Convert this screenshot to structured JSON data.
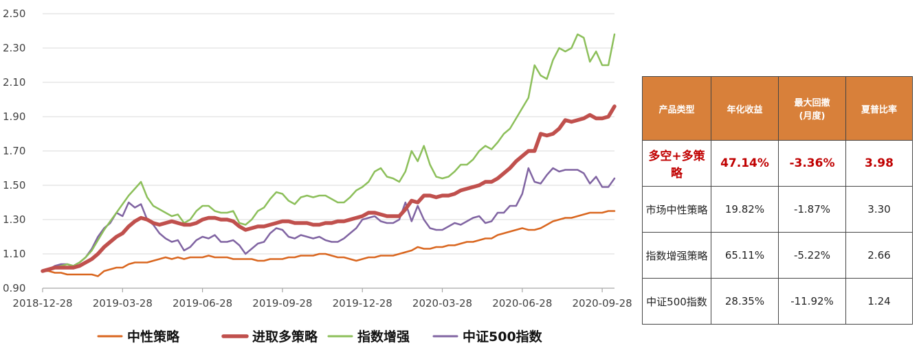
{
  "chart_data": {
    "type": "line",
    "title": "",
    "xlabel": "",
    "ylabel": "",
    "ylim": [
      0.9,
      2.5
    ],
    "yticks": [
      "0.90",
      "1.10",
      "1.30",
      "1.50",
      "1.70",
      "1.90",
      "2.10",
      "2.30",
      "2.50"
    ],
    "x_tick_labels": [
      "2018-12-28",
      "2019-03-28",
      "2019-06-28",
      "2019-09-28",
      "2019-12-28",
      "2020-03-28",
      "2020-06-28",
      "2020-09-28"
    ],
    "x": [
      "2018-12-28",
      "2019-01-04",
      "2019-01-11",
      "2019-01-18",
      "2019-01-25",
      "2019-02-01",
      "2019-02-08",
      "2019-02-15",
      "2019-02-22",
      "2019-03-01",
      "2019-03-08",
      "2019-03-15",
      "2019-03-22",
      "2019-03-29",
      "2019-04-05",
      "2019-04-12",
      "2019-04-19",
      "2019-04-26",
      "2019-05-03",
      "2019-05-10",
      "2019-05-17",
      "2019-05-24",
      "2019-05-31",
      "2019-06-07",
      "2019-06-14",
      "2019-06-21",
      "2019-06-28",
      "2019-07-05",
      "2019-07-12",
      "2019-07-19",
      "2019-07-26",
      "2019-08-02",
      "2019-08-09",
      "2019-08-16",
      "2019-08-23",
      "2019-08-30",
      "2019-09-06",
      "2019-09-13",
      "2019-09-20",
      "2019-09-27",
      "2019-10-04",
      "2019-10-11",
      "2019-10-18",
      "2019-10-25",
      "2019-11-01",
      "2019-11-08",
      "2019-11-15",
      "2019-11-22",
      "2019-11-29",
      "2019-12-06",
      "2019-12-13",
      "2019-12-20",
      "2019-12-27",
      "2020-01-03",
      "2020-01-10",
      "2020-01-17",
      "2020-01-24",
      "2020-01-31",
      "2020-02-07",
      "2020-02-14",
      "2020-02-21",
      "2020-02-28",
      "2020-03-06",
      "2020-03-13",
      "2020-03-20",
      "2020-03-27",
      "2020-04-03",
      "2020-04-10",
      "2020-04-17",
      "2020-04-24",
      "2020-05-01",
      "2020-05-08",
      "2020-05-15",
      "2020-05-22",
      "2020-05-29",
      "2020-06-05",
      "2020-06-12",
      "2020-06-19",
      "2020-06-26",
      "2020-07-03",
      "2020-07-10",
      "2020-07-17",
      "2020-07-24",
      "2020-07-31",
      "2020-08-07",
      "2020-08-14",
      "2020-08-21",
      "2020-08-28",
      "2020-09-04",
      "2020-09-11",
      "2020-09-18",
      "2020-09-25",
      "2020-10-02",
      "2020-10-09"
    ],
    "series": [
      {
        "name": "中性策略",
        "color": "#d9661f",
        "stroke_width": 2.5,
        "values": [
          1.0,
          1.0,
          0.99,
          0.99,
          0.98,
          0.98,
          0.98,
          0.98,
          0.98,
          0.97,
          1.0,
          1.01,
          1.02,
          1.02,
          1.04,
          1.05,
          1.05,
          1.05,
          1.06,
          1.07,
          1.08,
          1.07,
          1.08,
          1.07,
          1.08,
          1.08,
          1.08,
          1.09,
          1.08,
          1.08,
          1.08,
          1.07,
          1.07,
          1.07,
          1.07,
          1.06,
          1.06,
          1.07,
          1.07,
          1.07,
          1.08,
          1.08,
          1.09,
          1.09,
          1.09,
          1.1,
          1.1,
          1.09,
          1.08,
          1.08,
          1.07,
          1.06,
          1.07,
          1.08,
          1.08,
          1.09,
          1.09,
          1.09,
          1.1,
          1.11,
          1.12,
          1.14,
          1.13,
          1.13,
          1.14,
          1.14,
          1.15,
          1.15,
          1.16,
          1.17,
          1.17,
          1.18,
          1.19,
          1.19,
          1.21,
          1.22,
          1.23,
          1.24,
          1.25,
          1.24,
          1.24,
          1.25,
          1.27,
          1.29,
          1.3,
          1.31,
          1.31,
          1.32,
          1.33,
          1.34,
          1.34,
          1.34,
          1.35,
          1.35
        ]
      },
      {
        "name": "进取多策略",
        "color": "#c0504d",
        "stroke_width": 5.5,
        "values": [
          1.0,
          1.01,
          1.02,
          1.02,
          1.02,
          1.02,
          1.03,
          1.05,
          1.07,
          1.1,
          1.14,
          1.17,
          1.2,
          1.22,
          1.26,
          1.29,
          1.31,
          1.3,
          1.28,
          1.27,
          1.28,
          1.29,
          1.28,
          1.27,
          1.27,
          1.28,
          1.3,
          1.31,
          1.31,
          1.3,
          1.3,
          1.29,
          1.26,
          1.24,
          1.25,
          1.26,
          1.26,
          1.27,
          1.28,
          1.29,
          1.29,
          1.28,
          1.28,
          1.28,
          1.27,
          1.27,
          1.28,
          1.28,
          1.29,
          1.29,
          1.3,
          1.31,
          1.32,
          1.34,
          1.34,
          1.33,
          1.32,
          1.32,
          1.32,
          1.36,
          1.41,
          1.4,
          1.44,
          1.44,
          1.43,
          1.44,
          1.44,
          1.45,
          1.47,
          1.48,
          1.49,
          1.5,
          1.52,
          1.52,
          1.54,
          1.57,
          1.6,
          1.64,
          1.67,
          1.7,
          1.7,
          1.8,
          1.79,
          1.8,
          1.83,
          1.88,
          1.87,
          1.88,
          1.89,
          1.91,
          1.89,
          1.89,
          1.9,
          1.96
        ]
      },
      {
        "name": "指数增强",
        "color": "#8cbf5a",
        "stroke_width": 2.5,
        "values": [
          1.0,
          1.01,
          1.02,
          1.03,
          1.04,
          1.03,
          1.05,
          1.08,
          1.12,
          1.18,
          1.24,
          1.29,
          1.34,
          1.39,
          1.44,
          1.48,
          1.52,
          1.43,
          1.38,
          1.36,
          1.34,
          1.32,
          1.33,
          1.28,
          1.3,
          1.35,
          1.38,
          1.38,
          1.35,
          1.34,
          1.34,
          1.35,
          1.28,
          1.27,
          1.3,
          1.35,
          1.37,
          1.42,
          1.46,
          1.45,
          1.41,
          1.39,
          1.43,
          1.44,
          1.43,
          1.44,
          1.44,
          1.42,
          1.4,
          1.4,
          1.43,
          1.47,
          1.49,
          1.52,
          1.58,
          1.6,
          1.55,
          1.54,
          1.52,
          1.58,
          1.7,
          1.64,
          1.73,
          1.62,
          1.55,
          1.54,
          1.55,
          1.58,
          1.62,
          1.62,
          1.65,
          1.7,
          1.73,
          1.71,
          1.75,
          1.8,
          1.83,
          1.89,
          1.95,
          2.01,
          2.2,
          2.14,
          2.12,
          2.23,
          2.3,
          2.28,
          2.3,
          2.38,
          2.36,
          2.22,
          2.28,
          2.2,
          2.2,
          2.38
        ]
      },
      {
        "name": "中证500指数",
        "color": "#8064a2",
        "stroke_width": 2.5,
        "values": [
          1.0,
          1.01,
          1.03,
          1.04,
          1.04,
          1.03,
          1.05,
          1.08,
          1.13,
          1.2,
          1.25,
          1.28,
          1.34,
          1.32,
          1.4,
          1.37,
          1.39,
          1.3,
          1.27,
          1.22,
          1.19,
          1.17,
          1.18,
          1.12,
          1.14,
          1.18,
          1.2,
          1.19,
          1.21,
          1.17,
          1.17,
          1.18,
          1.15,
          1.1,
          1.13,
          1.16,
          1.17,
          1.22,
          1.25,
          1.24,
          1.2,
          1.19,
          1.21,
          1.2,
          1.19,
          1.2,
          1.18,
          1.17,
          1.17,
          1.19,
          1.22,
          1.25,
          1.3,
          1.31,
          1.32,
          1.29,
          1.28,
          1.28,
          1.3,
          1.4,
          1.29,
          1.38,
          1.3,
          1.25,
          1.24,
          1.24,
          1.26,
          1.28,
          1.27,
          1.29,
          1.31,
          1.32,
          1.28,
          1.29,
          1.34,
          1.34,
          1.38,
          1.38,
          1.45,
          1.6,
          1.52,
          1.51,
          1.56,
          1.6,
          1.58,
          1.59,
          1.59,
          1.59,
          1.57,
          1.51,
          1.55,
          1.49,
          1.49,
          1.54
        ]
      }
    ]
  },
  "table": {
    "headers": [
      "产品类型",
      "年化收益",
      "最大回撤\n(月度)",
      "夏普比率"
    ],
    "rows": [
      [
        "多空+多策略",
        "47.14%",
        "-3.36%",
        "3.98"
      ],
      [
        "市场中性策略",
        "19.82%",
        "-1.87%",
        "3.30"
      ],
      [
        "指数增强策略",
        "65.11%",
        "-5.22%",
        "2.66"
      ],
      [
        "中证500指数",
        "28.35%",
        "-11.92%",
        "1.24"
      ]
    ],
    "header_color": "#d8803a",
    "highlight_color": "#c00000"
  }
}
